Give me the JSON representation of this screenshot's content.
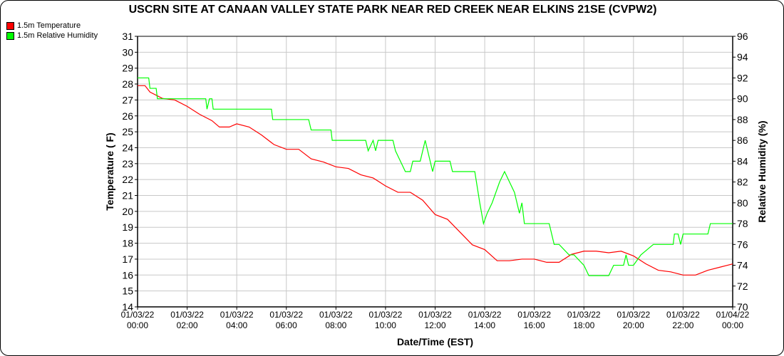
{
  "chart_data": {
    "type": "line",
    "title": "USCRN SITE AT CANAAN VALLEY STATE PARK NEAR RED CREEK NEAR ELKINS 21SE (CVPW2)",
    "xlabel": "Date/Time (EST)",
    "ylabel": "Temperature ( F)",
    "y2label": "Relative Humidity (%)",
    "xlim_hours": [
      0,
      24
    ],
    "ylim": [
      14,
      31
    ],
    "y2lim": [
      70,
      96
    ],
    "yticks": [
      "14",
      "15",
      "16",
      "17",
      "18",
      "19",
      "20",
      "21",
      "22",
      "23",
      "24",
      "25",
      "26",
      "27",
      "28",
      "29",
      "30",
      "31"
    ],
    "y2ticks": [
      "70",
      "72",
      "74",
      "76",
      "78",
      "80",
      "82",
      "84",
      "86",
      "88",
      "90",
      "92",
      "94",
      "96"
    ],
    "xticks": [
      [
        "01/03/22",
        "00:00"
      ],
      [
        "01/03/22",
        "02:00"
      ],
      [
        "01/03/22",
        "04:00"
      ],
      [
        "01/03/22",
        "06:00"
      ],
      [
        "01/03/22",
        "08:00"
      ],
      [
        "01/03/22",
        "10:00"
      ],
      [
        "01/03/22",
        "12:00"
      ],
      [
        "01/03/22",
        "14:00"
      ],
      [
        "01/03/22",
        "16:00"
      ],
      [
        "01/03/22",
        "18:00"
      ],
      [
        "01/03/22",
        "20:00"
      ],
      [
        "01/03/22",
        "22:00"
      ],
      [
        "01/04/22",
        "00:00"
      ]
    ],
    "grid": true,
    "legend_position": "top-left",
    "series": [
      {
        "name": "1.5m Temperature",
        "color": "#ff0000",
        "axis": "left",
        "x": [
          0,
          0.3,
          0.5,
          1,
          1.5,
          2,
          2.5,
          3,
          3.3,
          3.7,
          4,
          4.5,
          5,
          5.5,
          6,
          6.5,
          7,
          7.5,
          8,
          8.5,
          9,
          9.5,
          10,
          10.5,
          11,
          11.5,
          12,
          12.5,
          13,
          13.5,
          14,
          14.5,
          15,
          15.5,
          16,
          16.5,
          17,
          17.5,
          18,
          18.5,
          19,
          19.5,
          20,
          20.5,
          21,
          21.5,
          22,
          22.5,
          23,
          23.5,
          24
        ],
        "y": [
          27.9,
          27.9,
          27.5,
          27.1,
          27.0,
          26.6,
          26.1,
          25.7,
          25.3,
          25.3,
          25.5,
          25.3,
          24.8,
          24.2,
          23.9,
          23.9,
          23.3,
          23.1,
          22.8,
          22.7,
          22.3,
          22.1,
          21.6,
          21.2,
          21.2,
          20.7,
          19.8,
          19.5,
          18.7,
          17.9,
          17.6,
          16.9,
          16.9,
          17.0,
          17.0,
          16.8,
          16.8,
          17.3,
          17.5,
          17.5,
          17.4,
          17.5,
          17.2,
          16.7,
          16.3,
          16.2,
          16.0,
          16.0,
          16.3,
          16.5,
          16.7
        ]
      },
      {
        "name": "1.5m Relative Humidity",
        "color": "#00ff00",
        "axis": "right",
        "x": [
          0,
          0.45,
          0.5,
          0.75,
          0.8,
          2.75,
          2.8,
          2.9,
          3.0,
          3.05,
          5.4,
          5.45,
          6.9,
          7.0,
          7.8,
          7.85,
          9.2,
          9.3,
          9.5,
          9.6,
          9.7,
          10.3,
          10.4,
          10.6,
          10.8,
          11,
          11.1,
          11.4,
          11.5,
          11.6,
          11.8,
          11.9,
          12.0,
          12.6,
          12.7,
          13.6,
          13.8,
          13.95,
          14.1,
          14.3,
          14.6,
          14.8,
          15.0,
          15.2,
          15.4,
          15.5,
          15.6,
          16.6,
          16.8,
          17.0,
          17.4,
          17.6,
          18.0,
          18.2,
          19.0,
          19.2,
          19.6,
          19.7,
          19.8,
          20.0,
          20.3,
          20.8,
          21.6,
          21.65,
          21.8,
          21.9,
          22.0,
          23.0,
          23.1,
          24
        ],
        "y": [
          92,
          92,
          91,
          91,
          90,
          90,
          89,
          90,
          90,
          89,
          89,
          88,
          88,
          87,
          87,
          86,
          86,
          85,
          86,
          85,
          86,
          86,
          85,
          84,
          83,
          83,
          84,
          84,
          85,
          86,
          84,
          83,
          84,
          84,
          83,
          83,
          80,
          78,
          79,
          80,
          82,
          83,
          82,
          81,
          79,
          80,
          78,
          78,
          76,
          76,
          75,
          75,
          74,
          73,
          73,
          74,
          74,
          75,
          74,
          74,
          75,
          76,
          76,
          77,
          77,
          76,
          77,
          77,
          78,
          78
        ]
      }
    ]
  }
}
